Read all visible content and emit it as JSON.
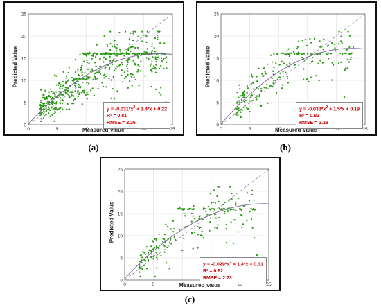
{
  "panels": [
    {
      "caption": "(a)"
    },
    {
      "caption": "(b)"
    },
    {
      "caption": "(c)"
    }
  ],
  "chart_data": [
    {
      "type": "scatter",
      "xlabel": "Measured Value",
      "ylabel": "Predicted Value",
      "xlim": [
        0,
        25
      ],
      "ylim": [
        0,
        25
      ],
      "xticks": [
        0,
        5,
        10,
        15,
        20,
        25
      ],
      "yticks": [
        0,
        5,
        10,
        15,
        20,
        25
      ],
      "grid": true,
      "point_color": "#2a9a14",
      "fit": {
        "a": -0.031,
        "b": 1.4,
        "c": 0.22
      },
      "equation": {
        "pre": "y = -0.031*x",
        "post": " + 1.4*x + 0.22"
      },
      "r2": "R² = 0.81",
      "rmse": "RMSE = 2.26",
      "sample": {
        "n": 620,
        "xmin": 2.0,
        "xmax": 24,
        "sd": 2.4,
        "cap": 16.0
      }
    },
    {
      "type": "scatter",
      "xlabel": "Measured Value",
      "ylabel": "Predicted Value",
      "xlim": [
        0,
        25
      ],
      "ylim": [
        0,
        25
      ],
      "xticks": [
        0,
        5,
        10,
        15,
        20,
        25
      ],
      "yticks": [
        0,
        5,
        10,
        15,
        20,
        25
      ],
      "grid": true,
      "point_color": "#2a9a14",
      "fit": {
        "a": -0.033,
        "b": 1.5,
        "c": 0.19
      },
      "equation": {
        "pre": "y = -0.033*x",
        "post": " + 1.5*x + 0.19"
      },
      "r2": "R² = 0.82",
      "rmse": "RMSE = 2.29",
      "sample": {
        "n": 230,
        "xmin": 2.5,
        "xmax": 23,
        "sd": 2.3,
        "cap": 16.0
      }
    },
    {
      "type": "scatter",
      "xlabel": "Measured Value",
      "ylabel": "Predicted Value",
      "xlim": [
        0,
        25
      ],
      "ylim": [
        0,
        25
      ],
      "xticks": [
        0,
        5,
        10,
        15,
        20,
        25
      ],
      "yticks": [
        0,
        5,
        10,
        15,
        20,
        25
      ],
      "grid": true,
      "point_color": "#2a9a14",
      "fit": {
        "a": -0.029,
        "b": 1.4,
        "c": 0.31
      },
      "equation": {
        "pre": "y = -0.029*x",
        "post": " + 1.4*x + 0.31"
      },
      "r2": "R² = 0.82",
      "rmse": "RMSE = 2.23",
      "sample": {
        "n": 230,
        "xmin": 2.5,
        "xmax": 23,
        "sd": 2.2,
        "cap": 16.0
      }
    }
  ]
}
